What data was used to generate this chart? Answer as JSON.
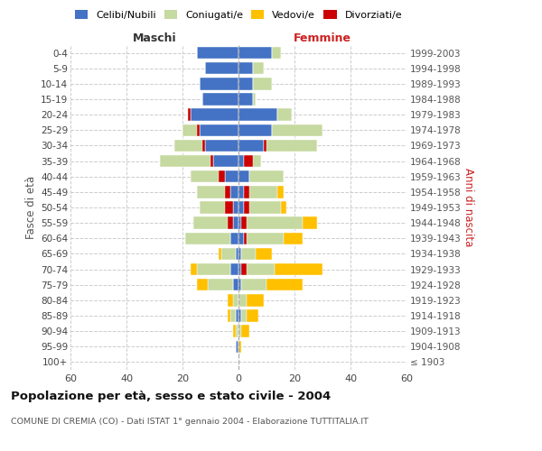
{
  "age_groups": [
    "100+",
    "95-99",
    "90-94",
    "85-89",
    "80-84",
    "75-79",
    "70-74",
    "65-69",
    "60-64",
    "55-59",
    "50-54",
    "45-49",
    "40-44",
    "35-39",
    "30-34",
    "25-29",
    "20-24",
    "15-19",
    "10-14",
    "5-9",
    "0-4"
  ],
  "birth_years": [
    "≤ 1903",
    "1904-1908",
    "1909-1913",
    "1914-1918",
    "1919-1923",
    "1924-1928",
    "1929-1933",
    "1934-1938",
    "1939-1943",
    "1944-1948",
    "1949-1953",
    "1954-1958",
    "1959-1963",
    "1964-1968",
    "1969-1973",
    "1974-1978",
    "1979-1983",
    "1984-1988",
    "1989-1993",
    "1994-1998",
    "1999-2003"
  ],
  "male": {
    "celibi": [
      0,
      1,
      0,
      1,
      0,
      2,
      3,
      1,
      3,
      2,
      2,
      3,
      5,
      9,
      12,
      14,
      17,
      13,
      14,
      12,
      15
    ],
    "coniugati": [
      0,
      0,
      1,
      2,
      2,
      9,
      12,
      5,
      16,
      14,
      12,
      12,
      12,
      19,
      11,
      6,
      1,
      0,
      0,
      0,
      0
    ],
    "vedovi": [
      0,
      0,
      1,
      1,
      2,
      4,
      2,
      1,
      0,
      0,
      0,
      0,
      0,
      0,
      0,
      0,
      0,
      0,
      0,
      0,
      0
    ],
    "divorziati": [
      0,
      0,
      0,
      0,
      0,
      0,
      0,
      0,
      0,
      2,
      3,
      2,
      2,
      1,
      1,
      1,
      1,
      0,
      0,
      0,
      0
    ]
  },
  "female": {
    "nubili": [
      0,
      0,
      0,
      1,
      0,
      1,
      1,
      1,
      2,
      1,
      2,
      2,
      4,
      2,
      9,
      12,
      14,
      5,
      5,
      5,
      12
    ],
    "coniugate": [
      0,
      0,
      1,
      2,
      3,
      9,
      12,
      5,
      14,
      22,
      13,
      12,
      12,
      6,
      19,
      18,
      5,
      1,
      7,
      4,
      3
    ],
    "vedove": [
      0,
      1,
      3,
      4,
      6,
      13,
      17,
      6,
      7,
      5,
      2,
      2,
      0,
      0,
      0,
      0,
      0,
      0,
      0,
      0,
      0
    ],
    "divorziate": [
      0,
      0,
      0,
      0,
      0,
      0,
      2,
      0,
      1,
      2,
      2,
      2,
      0,
      3,
      1,
      0,
      0,
      0,
      0,
      0,
      0
    ]
  },
  "colors": {
    "celibi_nubili": "#4472c4",
    "coniugati": "#c5d9a0",
    "vedovi": "#ffc000",
    "divorziati": "#cc0000"
  },
  "xlim": 60,
  "title": "Popolazione per età, sesso e stato civile - 2004",
  "subtitle": "COMUNE DI CREMIA (CO) - Dati ISTAT 1° gennaio 2004 - Elaborazione TUTTITALIA.IT",
  "ylabel_left": "Fasce di età",
  "ylabel_right": "Anni di nascita",
  "xlabel_left": "Maschi",
  "xlabel_right": "Femmine"
}
